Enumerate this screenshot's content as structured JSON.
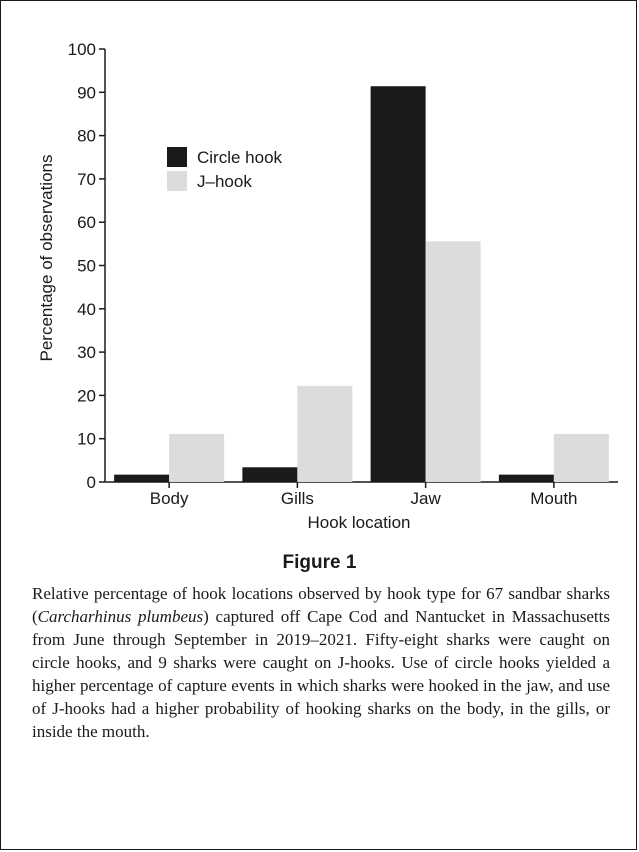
{
  "chart_data": {
    "type": "bar",
    "title": "",
    "xlabel": "Hook location",
    "ylabel": "Percentage of observations",
    "categories": [
      "Body",
      "Gills",
      "Jaw",
      "Mouth"
    ],
    "ylim": [
      0,
      100
    ],
    "yticks": [
      0,
      10,
      20,
      30,
      40,
      50,
      60,
      70,
      80,
      90,
      100
    ],
    "grid": false,
    "legend_position": "upper-left",
    "series": [
      {
        "name": "Circle hook",
        "color": "#1a1a1a",
        "values": [
          1.7,
          3.4,
          91.4,
          1.7
        ]
      },
      {
        "name": "J–hook",
        "color": "#dcdcdc",
        "values": [
          11.1,
          22.2,
          55.6,
          11.1
        ]
      }
    ]
  },
  "figure": {
    "title": "Figure 1",
    "caption_parts": [
      "Relative percentage of hook locations observed by hook type for 67 sandbar sharks (",
      "Carcharhinus plumbeus",
      ") captured off Cape Cod and Nantucket in Massachusetts from June through September in 2019–2021. Fifty-eight sharks were caught on circle hooks, and 9 sharks were caught on J-hooks. Use of circle hooks yielded a higher percentage of capture events in which sharks were hooked in the jaw, and use of J-hooks had a higher probability of hooking sharks on the body, in the gills, or inside the mouth."
    ]
  }
}
